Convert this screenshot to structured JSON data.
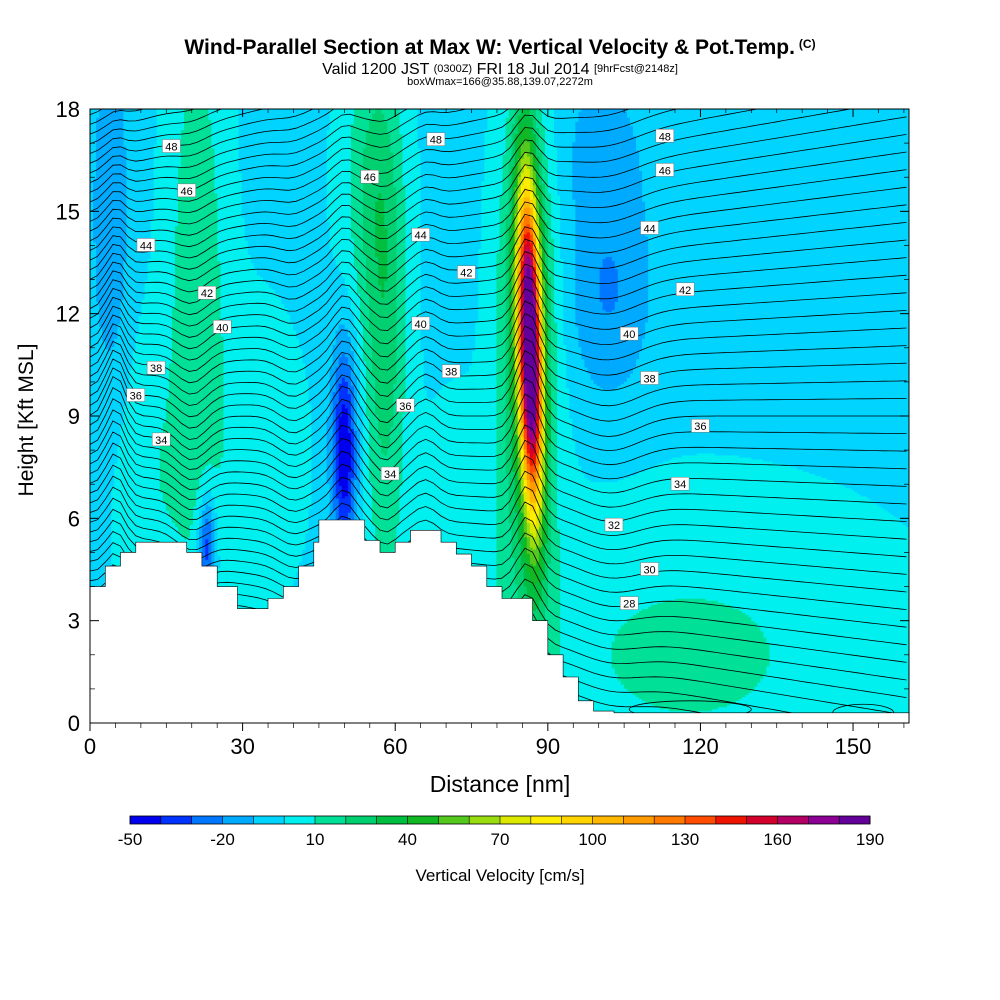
{
  "header": {
    "title": "Wind-Parallel Section at Max W: Vertical Velocity & Pot.Temp.",
    "title_sup": "(C)",
    "valid_prefix": "Valid 1200 JST",
    "valid_utc": "(0300Z)",
    "valid_date": "FRI 18 Jul 2014",
    "forecast": "[9hrFcst@2148z]",
    "boxinfo": "boxWmax=166@35.88,139.07,2272m"
  },
  "chart_data": {
    "type": "heatmap",
    "xlabel": "Distance [nm]",
    "ylabel": "Height [Kft MSL]",
    "xlim": [
      0,
      161
    ],
    "ylim": [
      0,
      18
    ],
    "x_ticks": [
      "0",
      "30",
      "60",
      "90",
      "120",
      "150"
    ],
    "y_ticks": [
      "0",
      "3",
      "6",
      "9",
      "12",
      "15",
      "18"
    ],
    "colorbar": {
      "label": "Vertical Velocity [cm/s]",
      "tick_labels": [
        "-50",
        "-20",
        "10",
        "40",
        "70",
        "100",
        "130",
        "160",
        "190"
      ],
      "levels": [
        -50,
        -40,
        -30,
        -20,
        -10,
        0,
        10,
        20,
        30,
        40,
        50,
        60,
        70,
        80,
        90,
        100,
        110,
        120,
        130,
        140,
        150,
        160,
        170,
        180,
        190
      ],
      "colors": [
        "#0000ee",
        "#0033ff",
        "#0077ff",
        "#00aaff",
        "#00d4ff",
        "#00f0f0",
        "#00e096",
        "#00d070",
        "#00bf40",
        "#12b824",
        "#55c81e",
        "#99dd10",
        "#dde800",
        "#ffee00",
        "#ffd400",
        "#ffb800",
        "#ff9a00",
        "#ff7800",
        "#ff4c00",
        "#ee1400",
        "#d4002c",
        "#b40064",
        "#8c0096",
        "#64009a"
      ]
    },
    "theta_contour_labels": [
      {
        "value": "48",
        "x": 16,
        "y": 16.9
      },
      {
        "value": "46",
        "x": 19,
        "y": 15.6
      },
      {
        "value": "44",
        "x": 11,
        "y": 14.0
      },
      {
        "value": "42",
        "x": 23,
        "y": 12.6
      },
      {
        "value": "40",
        "x": 26,
        "y": 11.6
      },
      {
        "value": "38",
        "x": 13,
        "y": 10.4
      },
      {
        "value": "36",
        "x": 9,
        "y": 9.6
      },
      {
        "value": "34",
        "x": 14,
        "y": 8.3
      },
      {
        "value": "46",
        "x": 55,
        "y": 16.0
      },
      {
        "value": "44",
        "x": 65,
        "y": 14.3
      },
      {
        "value": "40",
        "x": 65,
        "y": 11.7
      },
      {
        "value": "36",
        "x": 62,
        "y": 9.3
      },
      {
        "value": "34",
        "x": 59,
        "y": 7.3
      },
      {
        "value": "48",
        "x": 68,
        "y": 17.1
      },
      {
        "value": "42",
        "x": 74,
        "y": 13.2
      },
      {
        "value": "38",
        "x": 71,
        "y": 10.3
      },
      {
        "value": "48",
        "x": 113,
        "y": 17.2
      },
      {
        "value": "46",
        "x": 113,
        "y": 16.2
      },
      {
        "value": "44",
        "x": 110,
        "y": 14.5
      },
      {
        "value": "42",
        "x": 117,
        "y": 12.7
      },
      {
        "value": "40",
        "x": 106,
        "y": 11.4
      },
      {
        "value": "38",
        "x": 110,
        "y": 10.1
      },
      {
        "value": "36",
        "x": 120,
        "y": 8.7
      },
      {
        "value": "34",
        "x": 116,
        "y": 7.0
      },
      {
        "value": "32",
        "x": 103,
        "y": 5.8
      },
      {
        "value": "30",
        "x": 110,
        "y": 4.5
      },
      {
        "value": "28",
        "x": 106,
        "y": 3.5
      }
    ]
  }
}
